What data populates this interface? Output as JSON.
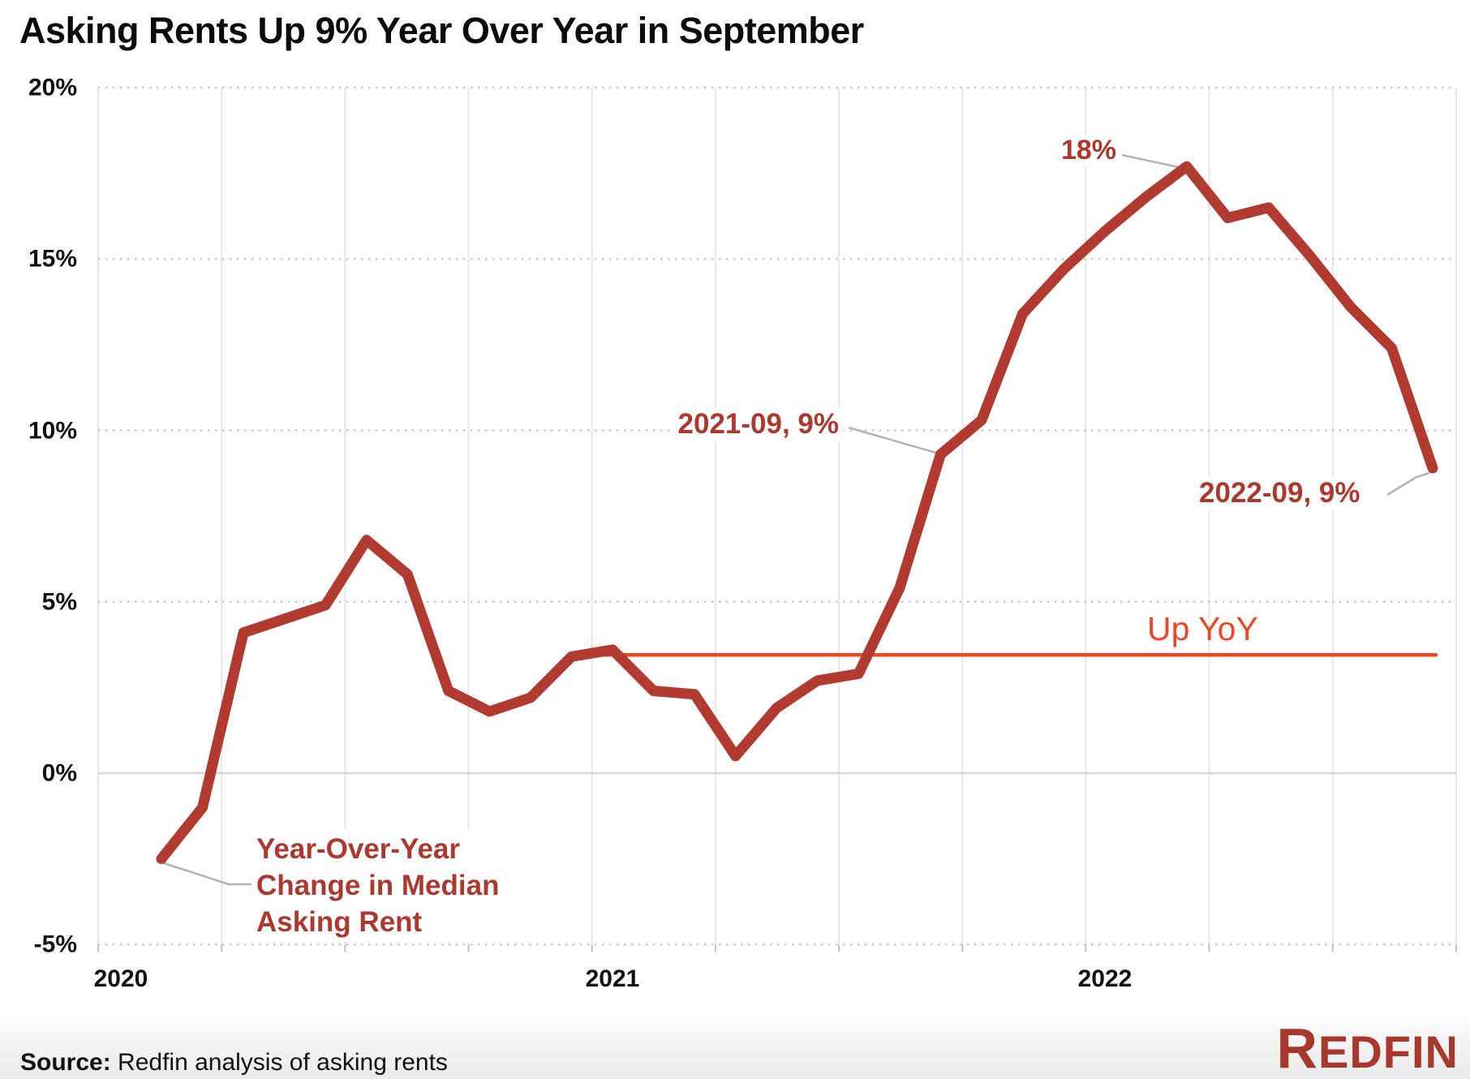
{
  "title": "Asking Rents Up 9% Year Over Year in September",
  "chart_data": {
    "type": "line",
    "series_name": "Year-Over-Year Change in Median Asking Rent",
    "x": [
      "2020-02",
      "2020-03",
      "2020-04",
      "2020-05",
      "2020-06",
      "2020-07",
      "2020-08",
      "2020-09",
      "2020-10",
      "2020-11",
      "2020-12",
      "2021-01",
      "2021-02",
      "2021-03",
      "2021-04",
      "2021-05",
      "2021-06",
      "2021-07",
      "2021-08",
      "2021-09",
      "2021-10",
      "2021-11",
      "2021-12",
      "2022-01",
      "2022-02",
      "2022-03",
      "2022-04",
      "2022-05",
      "2022-06",
      "2022-07",
      "2022-08",
      "2022-09"
    ],
    "values": [
      -2.5,
      -1.0,
      4.1,
      4.5,
      4.9,
      6.8,
      5.8,
      2.4,
      1.8,
      2.2,
      3.4,
      3.6,
      2.4,
      2.3,
      0.5,
      1.9,
      2.7,
      2.9,
      5.4,
      9.3,
      10.3,
      13.4,
      14.7,
      15.8,
      16.8,
      17.7,
      16.2,
      16.5,
      15.1,
      13.6,
      12.4,
      8.9
    ],
    "title": "Asking Rents Up 9% Year Over Year in September",
    "xlabel": "",
    "ylabel": "",
    "ylim": [
      -5,
      20
    ],
    "y_ticks": [
      20,
      15,
      10,
      5,
      0,
      -5
    ],
    "x_tick_labels": [
      "2020",
      "2021",
      "2022"
    ],
    "grid": "horizontal dotted, vertical solid quarterly, zero line solid",
    "legend_position": "none",
    "reference_line": {
      "value": 3.45,
      "label": "Up YoY"
    },
    "line_color": "#b23b31",
    "reference_color": "#ee4726"
  },
  "axis": {
    "y_labels": [
      "20%",
      "15%",
      "10%",
      "5%",
      "0%",
      "-5%"
    ],
    "x_labels": [
      "2020",
      "2021",
      "2022"
    ]
  },
  "annotations": {
    "peak": "18%",
    "sep2021": "2021-09, 9%",
    "sep2022": "2022-09, 9%",
    "ref_label": "Up YoY",
    "series_label_lines": [
      "Year-Over-Year",
      "Change in Median",
      "Asking Rent"
    ]
  },
  "footer": {
    "source_bold": "Source:",
    "source_rest": " Redfin analysis of asking rents",
    "logo": "REDFIN"
  },
  "colors": {
    "line": "#b23b31",
    "annotation_text": "#ab392f",
    "reference": "#ee4726",
    "leader": "#b3b3b3",
    "grid_dotted": "#c9c9c9",
    "grid_vertical": "#e6e6e6",
    "zero_line": "#d6d6d6",
    "logo": "#a6382e"
  }
}
